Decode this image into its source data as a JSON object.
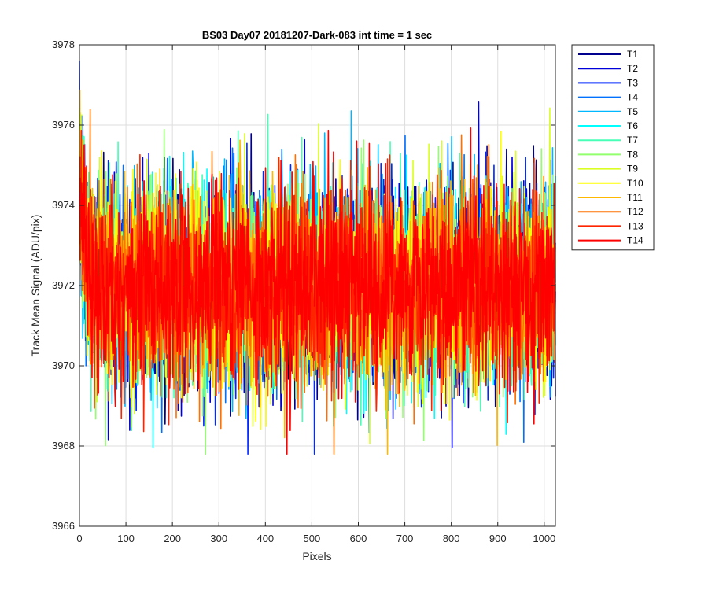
{
  "chart_data": {
    "type": "line",
    "title": "BS03 Day07 20181207-Dark-083 int time = 1 sec",
    "xlabel": "Pixels",
    "ylabel": "Track Mean Signal (ADU/pix)",
    "xlim": [
      0,
      1024
    ],
    "ylim": [
      3966,
      3978
    ],
    "xticks": [
      0,
      100,
      200,
      300,
      400,
      500,
      600,
      700,
      800,
      900,
      1000
    ],
    "yticks": [
      3966,
      3968,
      3970,
      3972,
      3974,
      3976,
      3978
    ],
    "grid": true,
    "legend_position": "outside-right",
    "n_points": 1024,
    "baseline_mean": 3972,
    "noise_std": 1.2,
    "series": [
      {
        "name": "T1",
        "color": "#00008F"
      },
      {
        "name": "T2",
        "color": "#0000DB"
      },
      {
        "name": "T3",
        "color": "#0028FF"
      },
      {
        "name": "T4",
        "color": "#0070FF"
      },
      {
        "name": "T5",
        "color": "#00B8FF"
      },
      {
        "name": "T6",
        "color": "#00FFFF"
      },
      {
        "name": "T7",
        "color": "#48FFB7"
      },
      {
        "name": "T8",
        "color": "#92FF6D"
      },
      {
        "name": "T9",
        "color": "#DBFF24"
      },
      {
        "name": "T10",
        "color": "#FFFF00"
      },
      {
        "name": "T11",
        "color": "#FFB800"
      },
      {
        "name": "T12",
        "color": "#FF7000"
      },
      {
        "name": "T13",
        "color": "#FF2400"
      },
      {
        "name": "T14",
        "color": "#FF0000"
      }
    ]
  }
}
